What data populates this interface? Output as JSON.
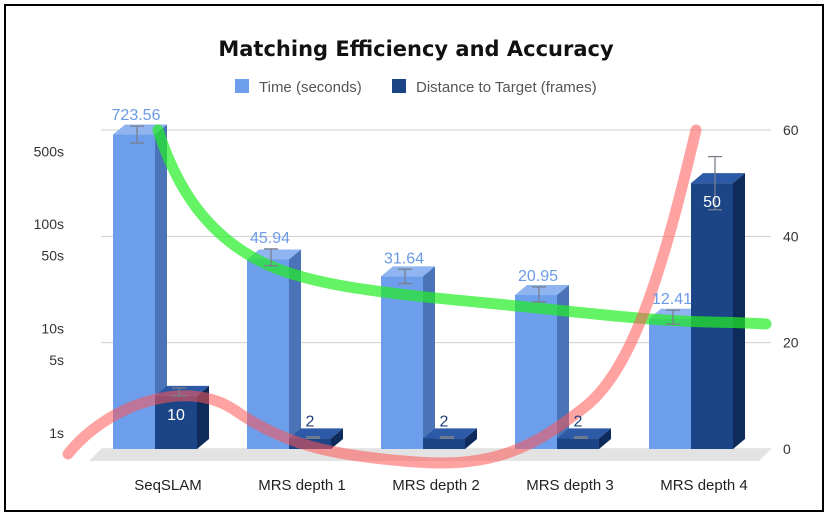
{
  "chart_data": {
    "type": "bar",
    "title": "Matching Efficiency and Accuracy",
    "categories": [
      "SeqSLAM",
      "MRS depth 1",
      "MRS depth 2",
      "MRS depth 3",
      "MRS depth 4"
    ],
    "series": [
      {
        "name": "Time (seconds)",
        "axis": "left",
        "scale": "log",
        "values": [
          723.56,
          45.94,
          31.64,
          20.95,
          12.41
        ],
        "labels": [
          "723.56",
          "45.94",
          "31.64",
          "20.95",
          "12.41"
        ],
        "error_high": [
          870,
          58,
          37,
          25,
          15
        ],
        "error_low": [
          600,
          40,
          27,
          18,
          11
        ]
      },
      {
        "name": "Distance to Target (frames)",
        "axis": "right",
        "scale": "linear",
        "values": [
          10,
          2,
          2,
          2,
          50
        ],
        "labels": [
          "10",
          "2",
          "2",
          "2",
          "50"
        ],
        "error_high": [
          11.5,
          2.3,
          2.3,
          2.3,
          55
        ],
        "error_low": [
          10,
          2,
          2,
          2,
          45
        ]
      }
    ],
    "left_axis": {
      "scale": "log",
      "ylim": [
        0.7,
        800
      ],
      "ticks": [
        1,
        5,
        10,
        50,
        100,
        500
      ],
      "tick_labels": [
        "1s",
        "5s",
        "10s",
        "50s",
        "100s",
        "500s"
      ]
    },
    "right_axis": {
      "ylim": [
        0,
        60
      ],
      "ticks": [
        0,
        20,
        40,
        60
      ],
      "tick_labels": [
        "0",
        "20",
        "40",
        "60"
      ]
    },
    "trend_lines": [
      {
        "name": "time-trend",
        "color": "#22ee22"
      },
      {
        "name": "distance-trend",
        "color": "#ff5555"
      }
    ],
    "legend_position": "top",
    "grid": true
  },
  "colors": {
    "time_front": "#6d9eeb",
    "time_side": "#4a73b8",
    "time_top": "#8fb4f0",
    "dist_front": "#1c4587",
    "dist_side": "#0f2b5c",
    "dist_top": "#2d5aa6"
  }
}
